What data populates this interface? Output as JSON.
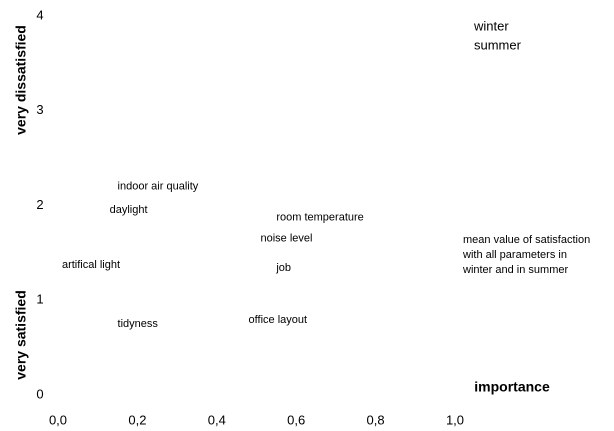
{
  "chart_data": {
    "type": "scatter",
    "labels": [
      "indoor air quality",
      "daylight",
      "room temperature",
      "noise level",
      "artifical light",
      "job",
      "tidyness",
      "office layout"
    ],
    "x": [
      0.15,
      0.13,
      0.55,
      0.51,
      0.01,
      0.55,
      0.15,
      0.48
    ],
    "values": [
      2.2,
      1.95,
      1.87,
      1.65,
      1.37,
      1.34,
      0.75,
      0.79
    ],
    "color": "#000000",
    "xlim": [
      0,
      1
    ],
    "ylim": [
      0,
      4
    ],
    "xticks": [
      {
        "value": 0,
        "label": "0,0"
      },
      {
        "value": 0.2,
        "label": "0,2"
      },
      {
        "value": 0.4,
        "label": "0,4"
      },
      {
        "value": 0.6,
        "label": "0,6"
      },
      {
        "value": 0.8,
        "label": "0,8"
      },
      {
        "value": 1,
        "label": "1,0"
      }
    ],
    "yticks": [
      0,
      1,
      2,
      3,
      4
    ],
    "xlabel": "importance",
    "ylabel_low": "very satisfied",
    "ylabel_high": "very dissatisfied",
    "legend": [
      "winter",
      "summer"
    ],
    "annotation_lines": [
      "mean value of satisfaction",
      "with all parameters in",
      "winter and in summer"
    ],
    "grid": false
  }
}
